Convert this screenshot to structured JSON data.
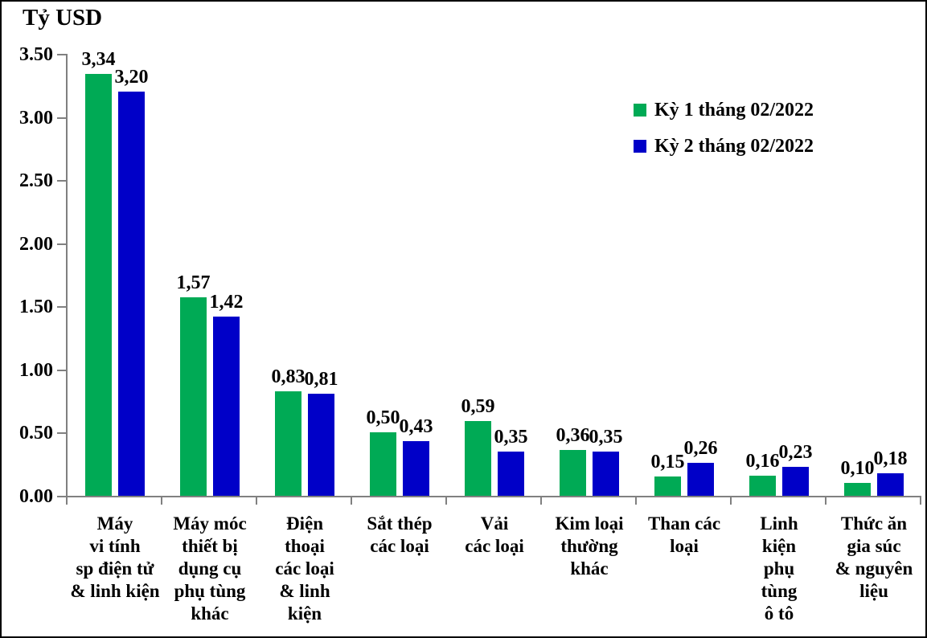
{
  "chart_data": {
    "type": "bar",
    "title": "Tỷ USD",
    "categories": [
      "Máy\nvi tính\nsp điện tử\n& linh kiện",
      "Máy móc\nthiết bị\ndụng cụ\nphụ tùng\nkhác",
      "Điện\nthoại\ncác loại\n& linh\nkiện",
      "Sắt thép\ncác loại",
      "Vải\ncác loại",
      "Kim loại\nthường\nkhác",
      "Than các\nloại",
      "Linh\nkiện\nphụ\ntùng\nô tô",
      "Thức ăn\ngia súc\n& nguyên\nliệu"
    ],
    "series": [
      {
        "name": "Kỳ 1 tháng 02/2022",
        "color": "#00AA55",
        "values": [
          3.34,
          1.57,
          0.83,
          0.5,
          0.59,
          0.36,
          0.15,
          0.16,
          0.1
        ],
        "labels": [
          "3,34",
          "1,57",
          "0,83",
          "0,50",
          "0,59",
          "0,36",
          "0,15",
          "0,16",
          "0,10"
        ]
      },
      {
        "name": "Kỳ 2 tháng 02/2022",
        "color": "#0000C8",
        "values": [
          3.2,
          1.42,
          0.81,
          0.43,
          0.35,
          0.35,
          0.26,
          0.23,
          0.18
        ],
        "labels": [
          "3,20",
          "1,42",
          "0,81",
          "0,43",
          "0,35",
          "0,35",
          "0,26",
          "0,23",
          "0,18"
        ]
      }
    ],
    "y_axis": {
      "ticks": [
        "0.00",
        "0.50",
        "1.00",
        "1.50",
        "2.00",
        "2.50",
        "3.00",
        "3.50"
      ],
      "min": 0,
      "max": 3.5
    },
    "xlabel": "",
    "ylabel": "Tỷ USD",
    "ylim": [
      0,
      3.5
    ],
    "grid": false,
    "legend_position": "top-right"
  }
}
